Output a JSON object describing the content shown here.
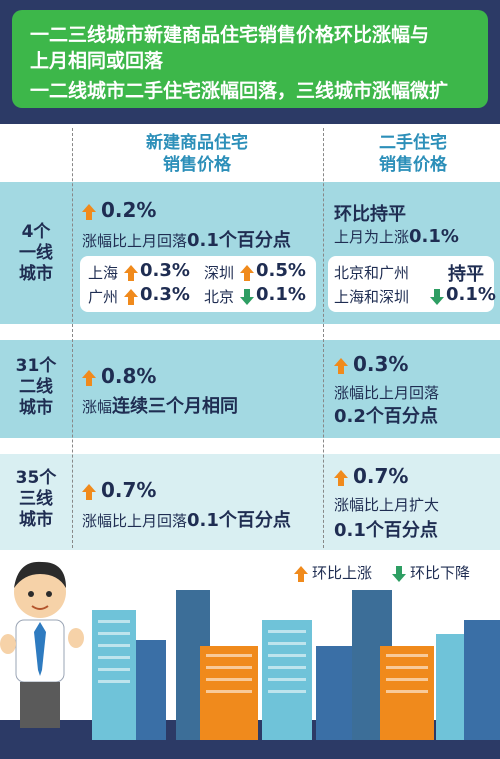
{
  "banner": {
    "line1": "一二三线城市新建商品住宅销售价格环比涨幅与",
    "line2": "上月相同或回落",
    "line3": "一二线城市二手住宅涨幅回落，三线城市涨幅微扩"
  },
  "columns": {
    "new_line1": "新建商品住宅",
    "new_line2": "销售价格",
    "used_line1": "二手住宅",
    "used_line2": "销售价格"
  },
  "rows": [
    {
      "label": [
        "4个",
        "一线",
        "城市"
      ],
      "new": {
        "value": "0.2%",
        "desc": "涨幅比上月回落",
        "desc_bold": "0.1个百分点"
      },
      "new_cities": [
        {
          "name": "上海",
          "dir": "up",
          "value": "0.3%"
        },
        {
          "name": "深圳",
          "dir": "up",
          "value": "0.5%"
        },
        {
          "name": "广州",
          "dir": "up",
          "value": "0.3%"
        },
        {
          "name": "北京",
          "dir": "down",
          "value": "0.1%"
        }
      ],
      "used": {
        "title": "环比持平",
        "desc": "上月为上涨",
        "desc_bold": "0.1%"
      },
      "used_cities": [
        {
          "name": "北京和广州",
          "status": "持平"
        },
        {
          "name": "上海和深圳",
          "dir": "down",
          "value": "0.1%"
        }
      ]
    },
    {
      "label": [
        "31个",
        "二线",
        "城市"
      ],
      "new": {
        "value": "0.8%",
        "desc": "涨幅",
        "desc_bold": "连续三个月相同"
      },
      "used": {
        "value": "0.3%",
        "desc": "涨幅比上月回落",
        "desc_bold": "0.2个百分点"
      }
    },
    {
      "label": [
        "35个",
        "三线",
        "城市"
      ],
      "new": {
        "value": "0.7%",
        "desc": "涨幅比上月回落",
        "desc_bold": "0.1个百分点"
      },
      "used": {
        "value": "0.7%",
        "desc": "涨幅比上月扩大",
        "desc_bold": "0.1个百分点"
      }
    }
  ],
  "legend": {
    "up": "环比上涨",
    "down": "环比下降"
  },
  "colors": {
    "banner": "#3db74a",
    "navy": "#2c3a66",
    "teal_row": "#a3d9e2",
    "light_row": "#d9eff2",
    "up": "#f08a1c",
    "down": "#2e9e63"
  }
}
